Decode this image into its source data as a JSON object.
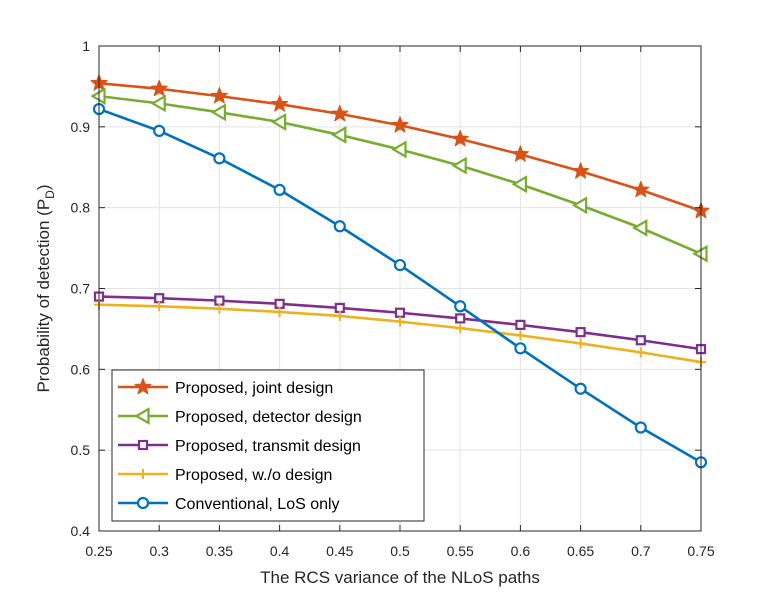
{
  "chart_data": {
    "type": "line",
    "title": "",
    "xlabel": "The RCS variance of the NLoS paths",
    "ylabel_main": "Probability of detection (P",
    "ylabel_sub": "D",
    "ylabel_close": ")",
    "xlim": [
      0.25,
      0.75
    ],
    "ylim": [
      0.4,
      1.0
    ],
    "grid": true,
    "legend_position": "bottom-left",
    "x": [
      0.25,
      0.3,
      0.35,
      0.4,
      0.45,
      0.5,
      0.55,
      0.6,
      0.65,
      0.7,
      0.75
    ],
    "x_tick_labels": [
      "0.25",
      "0.3",
      "0.35",
      "0.4",
      "0.45",
      "0.5",
      "0.55",
      "0.6",
      "0.65",
      "0.7",
      "0.75"
    ],
    "y_ticks": [
      0.4,
      0.5,
      0.6,
      0.7,
      0.8,
      0.9,
      1.0
    ],
    "y_tick_labels": [
      "0.4",
      "0.5",
      "0.6",
      "0.7",
      "0.8",
      "0.9",
      "1"
    ],
    "series": [
      {
        "name": "Proposed, joint design",
        "color": "#D95319",
        "marker": "star",
        "values": [
          0.954,
          0.947,
          0.938,
          0.928,
          0.916,
          0.902,
          0.885,
          0.866,
          0.845,
          0.822,
          0.796
        ]
      },
      {
        "name": "Proposed, detector design",
        "color": "#77AC30",
        "marker": "triangle-left",
        "values": [
          0.938,
          0.929,
          0.918,
          0.906,
          0.89,
          0.872,
          0.852,
          0.829,
          0.803,
          0.775,
          0.743
        ]
      },
      {
        "name": "Proposed, transmit design",
        "color": "#7E2F8E",
        "marker": "square",
        "values": [
          0.69,
          0.688,
          0.685,
          0.681,
          0.676,
          0.67,
          0.663,
          0.655,
          0.646,
          0.636,
          0.625
        ]
      },
      {
        "name": "Proposed, w./o design",
        "color": "#EDB120",
        "marker": "plus",
        "values": [
          0.68,
          0.678,
          0.675,
          0.671,
          0.666,
          0.659,
          0.651,
          0.642,
          0.632,
          0.621,
          0.609
        ]
      },
      {
        "name": "Conventional, LoS only",
        "color": "#0072BD",
        "marker": "circle",
        "values": [
          0.922,
          0.895,
          0.861,
          0.822,
          0.777,
          0.729,
          0.678,
          0.626,
          0.576,
          0.528,
          0.485
        ]
      }
    ]
  }
}
